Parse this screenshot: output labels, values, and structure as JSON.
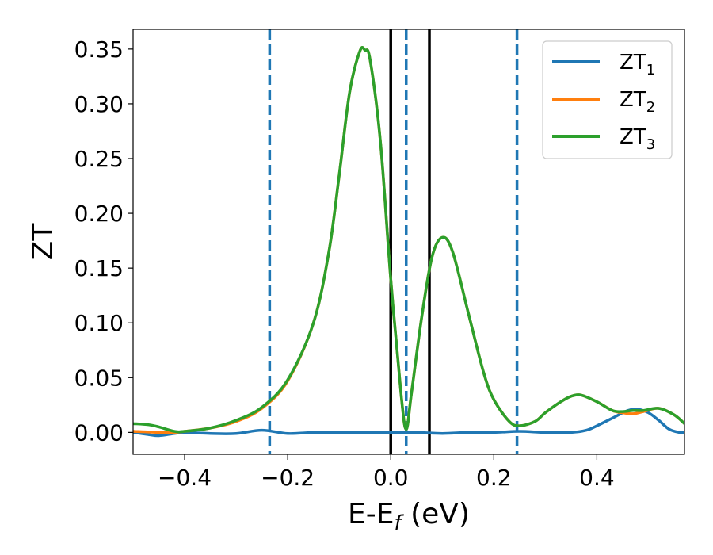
{
  "chart_data": {
    "type": "line",
    "xlabel": "E-E",
    "xlabel_sub": "f",
    "xlabel_unit": " (eV)",
    "ylabel": "ZT",
    "xlim": [
      -0.5,
      0.57
    ],
    "ylim": [
      -0.02,
      0.368
    ],
    "xticks": [
      -0.4,
      -0.2,
      0.0,
      0.2,
      0.4
    ],
    "xtick_labels": [
      "−0.4",
      "−0.2",
      "0.0",
      "0.2",
      "0.4"
    ],
    "yticks": [
      0.0,
      0.05,
      0.1,
      0.15,
      0.2,
      0.25,
      0.3,
      0.35
    ],
    "ytick_labels": [
      "0.00",
      "0.05",
      "0.10",
      "0.15",
      "0.20",
      "0.25",
      "0.30",
      "0.35"
    ],
    "grid": false,
    "legend_position": "top-right",
    "vlines_dashed": {
      "color": "#1f77b4",
      "x": [
        -0.235,
        0.03,
        0.245
      ]
    },
    "vlines_solid": {
      "color": "#000000",
      "x": [
        0.0,
        0.075
      ]
    },
    "series": [
      {
        "name": "ZT",
        "name_sub": "1",
        "color": "#1f77b4",
        "x": [
          -0.5,
          -0.47,
          -0.45,
          -0.42,
          -0.4,
          -0.35,
          -0.3,
          -0.25,
          -0.2,
          -0.15,
          -0.1,
          -0.05,
          0.0,
          0.05,
          0.1,
          0.15,
          0.2,
          0.25,
          0.3,
          0.35,
          0.38,
          0.4,
          0.43,
          0.46,
          0.48,
          0.5,
          0.52,
          0.54,
          0.56,
          0.57
        ],
        "y": [
          0.0,
          -0.002,
          -0.003,
          -0.001,
          0.0,
          -0.001,
          -0.001,
          0.002,
          -0.001,
          0.0,
          0.0,
          0.0,
          0.0,
          0.0,
          -0.001,
          0.0,
          0.0,
          0.001,
          0.0,
          0.0,
          0.002,
          0.006,
          0.013,
          0.02,
          0.021,
          0.018,
          0.011,
          0.003,
          0.0,
          0.0
        ]
      },
      {
        "name": "ZT",
        "name_sub": "2",
        "color": "#ff7f0e",
        "x": [
          -0.5,
          -0.45,
          -0.42,
          -0.4,
          -0.35,
          -0.3,
          -0.25,
          -0.2,
          -0.15,
          -0.12,
          -0.1,
          -0.08,
          -0.06,
          -0.05,
          -0.04,
          -0.02,
          0.0,
          0.02,
          0.03,
          0.04,
          0.06,
          0.08,
          0.1,
          0.12,
          0.15,
          0.18,
          0.2,
          0.23,
          0.25,
          0.28,
          0.3,
          0.33,
          0.35,
          0.37,
          0.4,
          0.43,
          0.45,
          0.47,
          0.49,
          0.52,
          0.55,
          0.57
        ],
        "y": [
          0.001,
          0.0,
          0.0,
          0.001,
          0.004,
          0.01,
          0.022,
          0.047,
          0.1,
          0.165,
          0.235,
          0.31,
          0.348,
          0.349,
          0.34,
          0.265,
          0.14,
          0.035,
          0.003,
          0.035,
          0.105,
          0.16,
          0.178,
          0.165,
          0.11,
          0.055,
          0.03,
          0.01,
          0.006,
          0.01,
          0.018,
          0.028,
          0.033,
          0.034,
          0.028,
          0.02,
          0.018,
          0.017,
          0.019,
          0.022,
          0.016,
          0.008
        ]
      },
      {
        "name": "ZT",
        "name_sub": "3",
        "color": "#2ca02c",
        "x": [
          -0.5,
          -0.47,
          -0.45,
          -0.42,
          -0.4,
          -0.35,
          -0.3,
          -0.25,
          -0.2,
          -0.15,
          -0.12,
          -0.1,
          -0.08,
          -0.06,
          -0.05,
          -0.04,
          -0.02,
          0.0,
          0.02,
          0.03,
          0.04,
          0.06,
          0.08,
          0.1,
          0.12,
          0.15,
          0.18,
          0.2,
          0.23,
          0.25,
          0.28,
          0.3,
          0.33,
          0.35,
          0.37,
          0.4,
          0.43,
          0.45,
          0.47,
          0.49,
          0.52,
          0.55,
          0.57
        ],
        "y": [
          0.008,
          0.007,
          0.005,
          0.001,
          0.001,
          0.004,
          0.011,
          0.023,
          0.048,
          0.1,
          0.165,
          0.235,
          0.31,
          0.348,
          0.349,
          0.34,
          0.265,
          0.14,
          0.035,
          0.003,
          0.035,
          0.105,
          0.16,
          0.178,
          0.165,
          0.11,
          0.055,
          0.03,
          0.01,
          0.006,
          0.01,
          0.018,
          0.028,
          0.033,
          0.034,
          0.028,
          0.02,
          0.019,
          0.02,
          0.02,
          0.022,
          0.016,
          0.008
        ]
      }
    ]
  }
}
